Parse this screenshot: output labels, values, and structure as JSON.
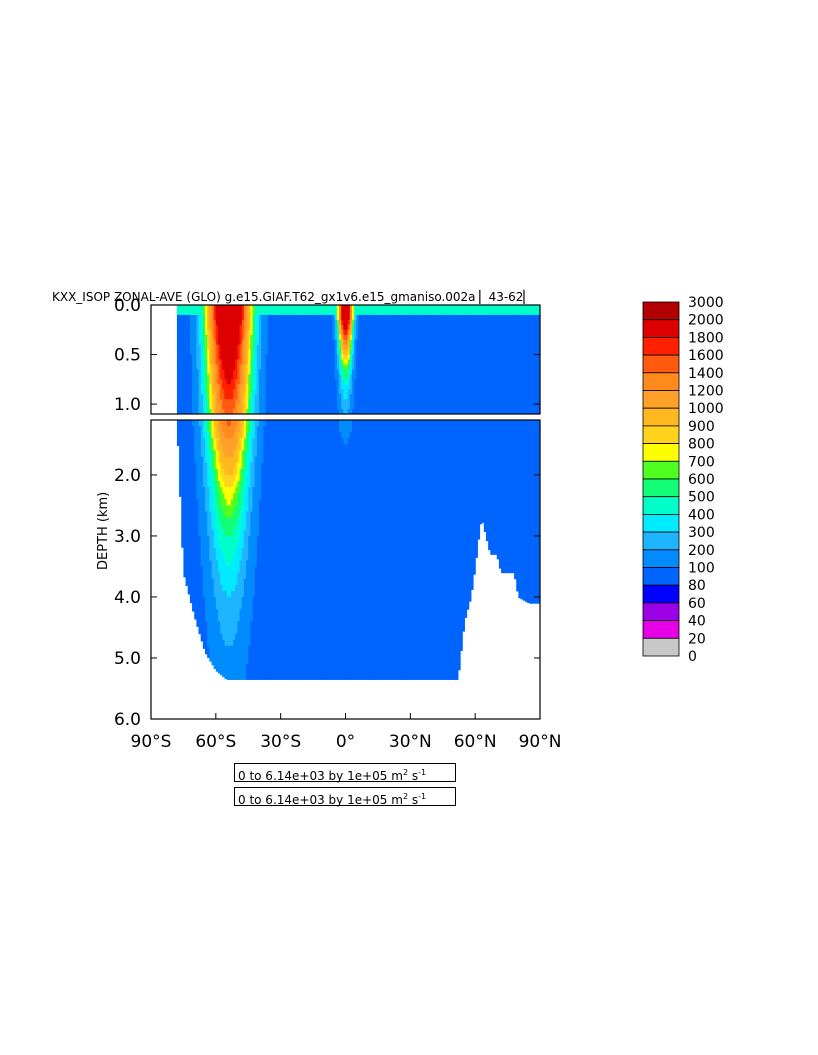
{
  "chart_data": {
    "type": "heatmap",
    "title": "KXX_ISOP ZONAL-AVE (GLO) g.e15.GIAF.T62_gx1v6.e15_gmaniso.002a ▏43-62▏",
    "ylabel": "DEPTH (km)",
    "xlabel": "",
    "x_ticks": [
      "90°S",
      "60°S",
      "30°S",
      "0°",
      "30°N",
      "60°N",
      "90°N"
    ],
    "x_tick_values": [
      -90,
      -60,
      -30,
      0,
      30,
      60,
      90
    ],
    "xlim": [
      -90,
      90
    ],
    "y_ticks_upper": [
      "0.0",
      "0.5",
      "1.0"
    ],
    "y_tick_values_upper": [
      0.0,
      0.5,
      1.0
    ],
    "ylim_upper": [
      0.0,
      1.1
    ],
    "y_ticks_lower": [
      "2.0",
      "3.0",
      "4.0",
      "5.0",
      "6.0"
    ],
    "y_tick_values_lower": [
      2.0,
      3.0,
      4.0,
      5.0,
      6.0
    ],
    "ylim_lower": [
      1.1,
      6.0
    ],
    "colorbar_levels": [
      "3000",
      "2000",
      "1800",
      "1600",
      "1400",
      "1200",
      "1000",
      "900",
      "800",
      "700",
      "600",
      "500",
      "400",
      "300",
      "200",
      "100",
      "80",
      "60",
      "40",
      "20",
      "0"
    ],
    "colorbar_colors": [
      "#b40000",
      "#dc0000",
      "#ff2000",
      "#ff5a10",
      "#ff8a1e",
      "#ffa028",
      "#ffb81e",
      "#ffd21e",
      "#ffff00",
      "#50ff20",
      "#14ff78",
      "#00ffc8",
      "#00ebff",
      "#1eb4ff",
      "#008cff",
      "#0064ff",
      "#0000ff",
      "#9b00e6",
      "#e600e6",
      "#c8c8c8",
      "#6e6e6e"
    ],
    "field_range_note": "0 to 6.14e+03 by 1e+05 m",
    "field_range_note_2": "0 to 6.14e+03 by 1e+05 m",
    "units_sup_1": "2",
    "units_s": " s",
    "units_sup_2": "-1",
    "profile": {
      "lat": [
        -78,
        -75,
        -70,
        -65,
        -60,
        -55,
        -50,
        -45,
        -40,
        -35,
        -30,
        -25,
        -20,
        -15,
        -10,
        -5,
        0,
        5,
        10,
        15,
        20,
        25,
        30,
        35,
        40,
        45,
        50,
        52,
        55,
        58,
        60,
        62,
        63,
        65,
        67,
        70,
        72,
        75,
        78,
        80,
        85,
        90
      ],
      "bottom_km": [
        1.1,
        3.6,
        4.3,
        4.9,
        5.2,
        5.35,
        5.35,
        5.35,
        5.35,
        5.35,
        5.35,
        5.35,
        5.35,
        5.35,
        5.35,
        5.35,
        5.35,
        5.35,
        5.35,
        5.35,
        5.35,
        5.35,
        5.35,
        5.35,
        5.35,
        5.35,
        5.35,
        5.35,
        4.4,
        4.0,
        3.5,
        2.9,
        2.7,
        3.0,
        3.3,
        3.3,
        3.6,
        3.6,
        3.6,
        4.0,
        4.1,
        4.1
      ]
    },
    "features": [
      {
        "type": "maximum",
        "lat": -54,
        "depth_km": 0.1,
        "value": 3000
      },
      {
        "type": "maximum",
        "lat": 0,
        "depth_km": 0.1,
        "value": 3000
      },
      {
        "type": "background",
        "value": 150
      }
    ]
  }
}
